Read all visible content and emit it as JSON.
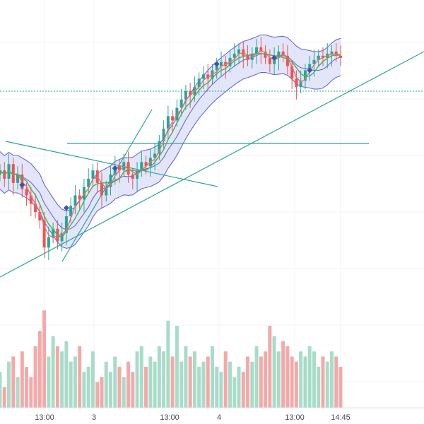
{
  "colors": {
    "up": "#26a69a",
    "down": "#ef5350",
    "up_volume": "#a8dcc8",
    "down_volume": "#f4a9a9",
    "band_fill": "#d9dcf7",
    "band_line": "#5a5fd6",
    "ema_fast": "#ef6c6c",
    "ema_slow": "#4caf50",
    "drawing": "#26a69a",
    "marker": "#3f51b5",
    "grid": "#f0f3fa"
  },
  "chart_data": {
    "type": "candlestick",
    "x_axis": {
      "tick_labels": [
        "13:00",
        "3",
        "13:00",
        "4",
        "13:00",
        "14:45"
      ]
    },
    "y_axis": {
      "tick_labels": []
    },
    "grid": true,
    "legend": "none",
    "price_line_level": 0.8,
    "series": [
      {
        "values": [
          0.42,
          0.38,
          0.45,
          0.36,
          0.4,
          0.33,
          0.3,
          0.26,
          0.22,
          0.18,
          0.05,
          0.1,
          0.14,
          0.08,
          0.12,
          0.2,
          0.25,
          0.3,
          0.28,
          0.34,
          0.38,
          0.42,
          0.36,
          0.3,
          0.34,
          0.4,
          0.44,
          0.42,
          0.46,
          0.4,
          0.38,
          0.42,
          0.46,
          0.44,
          0.48,
          0.5,
          0.56,
          0.62,
          0.68,
          0.66,
          0.72,
          0.76,
          0.8,
          0.78,
          0.82,
          0.86,
          0.88,
          0.86,
          0.9,
          0.92,
          0.94,
          0.92,
          0.96,
          0.98,
          1.0,
          0.97,
          0.95,
          0.98,
          1.01,
          0.99,
          0.96,
          0.93,
          0.96,
          0.99,
          0.97,
          0.92,
          0.86,
          0.82,
          0.85,
          0.9,
          0.93,
          0.95,
          0.97,
          0.96,
          0.98,
          0.99,
          0.97,
          0.96
        ]
      }
    ],
    "volume": [
      0.35,
      0.2,
      0.45,
      0.5,
      0.3,
      0.55,
      0.4,
      0.3,
      0.6,
      0.75,
      0.95,
      0.5,
      0.7,
      0.6,
      0.55,
      0.65,
      0.45,
      0.5,
      0.6,
      0.35,
      0.4,
      0.55,
      0.25,
      0.3,
      0.45,
      0.35,
      0.5,
      0.4,
      0.3,
      0.45,
      0.35,
      0.55,
      0.6,
      0.4,
      0.5,
      0.45,
      0.6,
      0.55,
      0.85,
      0.5,
      0.8,
      0.45,
      0.6,
      0.5,
      0.55,
      0.4,
      0.45,
      0.5,
      0.6,
      0.4,
      0.35,
      0.55,
      0.45,
      0.3,
      0.4,
      0.35,
      0.5,
      0.45,
      0.6,
      0.5,
      0.55,
      0.8,
      0.7,
      0.55,
      0.65,
      0.6,
      0.5,
      0.45,
      0.55,
      0.5,
      0.6,
      0.55,
      0.4,
      0.5,
      0.45,
      0.55,
      0.5,
      0.4
    ]
  }
}
